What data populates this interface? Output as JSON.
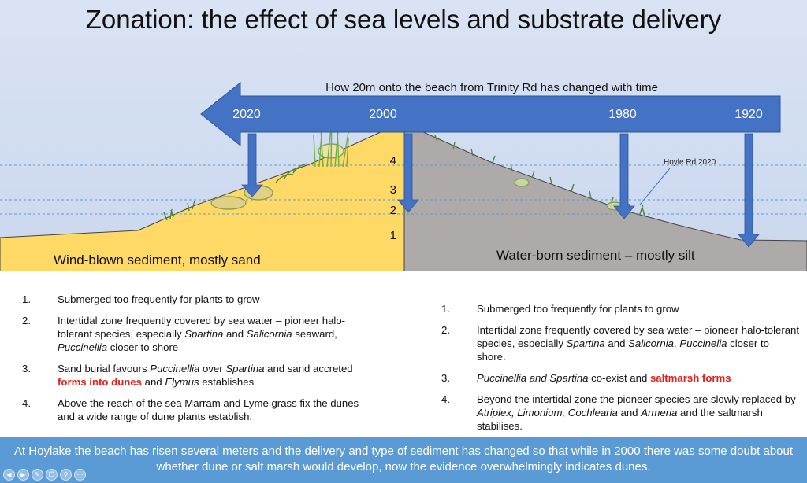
{
  "title": "Zonation: the effect of sea levels and substrate delivery",
  "timeline": {
    "caption": "How 20m onto the beach from Trinity Rd has changed with time",
    "years": [
      "2020",
      "2000",
      "1980",
      "1920"
    ]
  },
  "zone_numbers": [
    "4",
    "3",
    "2",
    "1"
  ],
  "labels": {
    "hoyle": "Hoyle Rd 2020",
    "sand": "Wind-blown sediment, mostly sand",
    "silt": "Water-born sediment – mostly silt"
  },
  "left_list": [
    {
      "num": "1.",
      "parts": [
        {
          "t": "Submerged too frequently for plants to grow",
          "s": "n"
        }
      ]
    },
    {
      "num": "2.",
      "parts": [
        {
          "t": "Intertidal zone frequently covered by sea water – pioneer halo-tolerant species, especially ",
          "s": "n"
        },
        {
          "t": "Spartina",
          "s": "i"
        },
        {
          "t": " and ",
          "s": "n"
        },
        {
          "t": "Salicornia",
          "s": "i"
        },
        {
          "t": " seaward, ",
          "s": "n"
        },
        {
          "t": "Puccinellia",
          "s": "i"
        },
        {
          "t": " closer to shore",
          "s": "n"
        }
      ]
    },
    {
      "num": "3.",
      "parts": [
        {
          "t": "Sand burial favours ",
          "s": "n"
        },
        {
          "t": "Puccinellia",
          "s": "i"
        },
        {
          "t": " over ",
          "s": "n"
        },
        {
          "t": "Spartina",
          "s": "i"
        },
        {
          "t": " and sand accreted ",
          "s": "n"
        },
        {
          "t": "forms into dunes",
          "s": "r"
        },
        {
          "t": " and ",
          "s": "n"
        },
        {
          "t": "Elymus",
          "s": "i"
        },
        {
          "t": " establishes",
          "s": "n"
        }
      ]
    },
    {
      "num": "4.",
      "parts": [
        {
          "t": "Above the reach of the sea Marram and Lyme grass fix  the dunes and a wide range of dune plants establish.",
          "s": "n"
        }
      ]
    }
  ],
  "right_list": [
    {
      "num": "1.",
      "parts": [
        {
          "t": "Submerged too frequently for plants to grow",
          "s": "n"
        }
      ]
    },
    {
      "num": "2.",
      "parts": [
        {
          "t": "Intertidal zone frequently covered by sea water – pioneer halo-tolerant species, especially ",
          "s": "n"
        },
        {
          "t": "Spartina",
          "s": "i"
        },
        {
          "t": " and ",
          "s": "n"
        },
        {
          "t": "Salicornia",
          "s": "i"
        },
        {
          "t": ".  ",
          "s": "n"
        },
        {
          "t": "Puccinelia",
          "s": "i"
        },
        {
          "t": " closer to shore.",
          "s": "n"
        }
      ]
    },
    {
      "num": "3.",
      "parts": [
        {
          "t": "Puccinellia",
          "s": "i"
        },
        {
          "t": " and ",
          "s": "i"
        },
        {
          "t": "Spartina",
          "s": "i"
        },
        {
          "t": " co-exist and ",
          "s": "n"
        },
        {
          "t": "saltmarsh forms",
          "s": "r"
        }
      ]
    },
    {
      "num": "4.",
      "parts": [
        {
          "t": "Beyond the intertidal zone the pioneer species are slowly replaced by ",
          "s": "n"
        },
        {
          "t": "Atriplex, Limonium, Cochlearia",
          "s": "i"
        },
        {
          "t": " and ",
          "s": "n"
        },
        {
          "t": "Armeria",
          "s": "i"
        },
        {
          "t": " and the saltmarsh stabilises.",
          "s": "n"
        }
      ]
    }
  ],
  "conclusion": "At Hoylake the beach has risen several meters and the delivery and type of sediment has changed so that while in 2000 there was some doubt about whether dune or salt marsh would develop, now the evidence overwhelmingly indicates dunes.",
  "colors": {
    "sky": "#dae3f3",
    "sand": "#ffd966",
    "silt": "#aeaaaa",
    "arrow": "#4472c4",
    "banner": "#5b9bd5",
    "accent_red": "#e0201b"
  },
  "icons": [
    "player-back-icon",
    "player-play-icon",
    "player-edit-icon",
    "player-copy-icon",
    "player-zoom-icon",
    "player-more-icon"
  ]
}
